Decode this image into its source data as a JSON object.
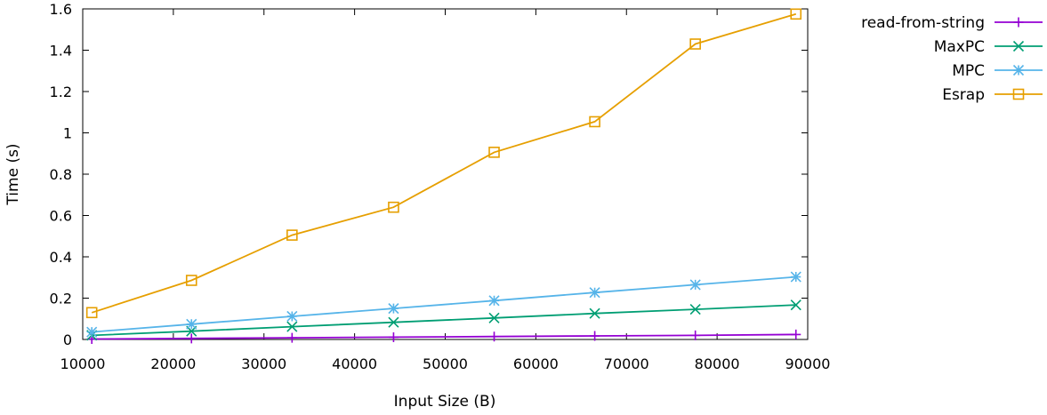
{
  "chart_data": {
    "type": "line",
    "xlabel": "Input Size (B)",
    "ylabel": "Time (s)",
    "xlim": [
      10000,
      90000
    ],
    "ylim": [
      0,
      1.6
    ],
    "xticks": [
      "10000",
      "20000",
      "30000",
      "40000",
      "50000",
      "60000",
      "70000",
      "80000",
      "90000"
    ],
    "yticks": [
      "0",
      "0.2",
      "0.4",
      "0.6",
      "0.8",
      "1",
      "1.2",
      "1.4",
      "1.6"
    ],
    "x": [
      11000,
      22000,
      33100,
      44300,
      55400,
      66500,
      77600,
      88700
    ],
    "grid": false,
    "legend_position": "top-right outside",
    "series": [
      {
        "name": "read-from-string",
        "color": "#9400d3",
        "marker": "plus",
        "values": [
          0.002,
          0.005,
          0.008,
          0.011,
          0.014,
          0.017,
          0.02,
          0.024
        ]
      },
      {
        "name": "MaxPC",
        "color": "#009e73",
        "marker": "cross",
        "values": [
          0.02,
          0.04,
          0.062,
          0.083,
          0.104,
          0.126,
          0.146,
          0.167
        ]
      },
      {
        "name": "MPC",
        "color": "#56b4e9",
        "marker": "star",
        "values": [
          0.036,
          0.074,
          0.112,
          0.15,
          0.188,
          0.227,
          0.265,
          0.303
        ]
      },
      {
        "name": "Esrap",
        "color": "#e69f00",
        "marker": "square",
        "values": [
          0.13,
          0.286,
          0.505,
          0.64,
          0.906,
          1.054,
          1.43,
          1.575
        ]
      }
    ]
  }
}
